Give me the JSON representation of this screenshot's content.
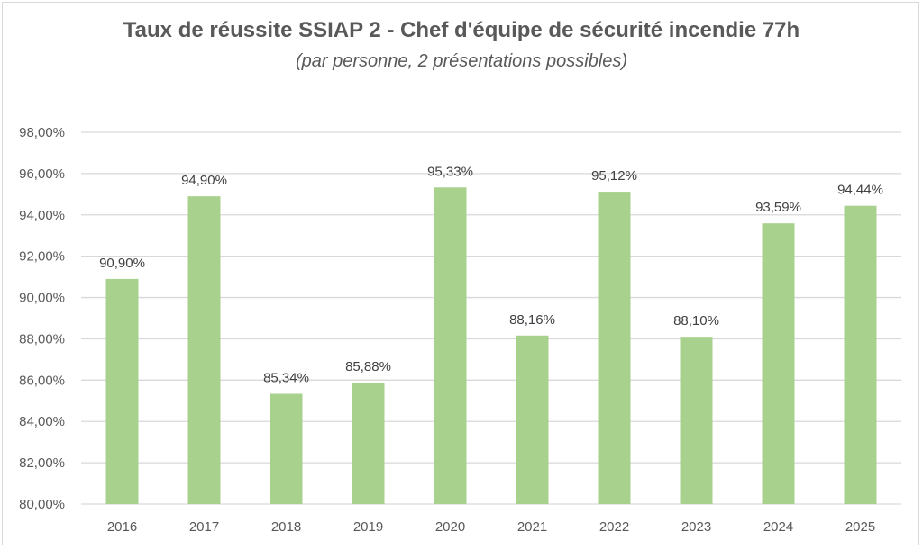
{
  "chart_data": {
    "type": "bar",
    "title": "Taux de réussite SSIAP 2 - Chef d'équipe de sécurité incendie 77h",
    "subtitle": "(par personne, 2 présentations possibles)",
    "xlabel": "",
    "ylabel": "",
    "categories": [
      "2016",
      "2017",
      "2018",
      "2019",
      "2020",
      "2021",
      "2022",
      "2023",
      "2024",
      "2025"
    ],
    "values": [
      90.9,
      94.9,
      85.34,
      85.88,
      95.33,
      88.16,
      95.12,
      88.1,
      93.59,
      94.44
    ],
    "data_labels": [
      "90,90%",
      "94,90%",
      "85,34%",
      "85,88%",
      "95,33%",
      "88,16%",
      "95,12%",
      "88,10%",
      "93,59%",
      "94,44%"
    ],
    "ylim": [
      80,
      98
    ],
    "yticks": [
      80,
      82,
      84,
      86,
      88,
      90,
      92,
      94,
      96,
      98
    ],
    "ytick_labels": [
      "80,00%",
      "82,00%",
      "84,00%",
      "86,00%",
      "88,00%",
      "90,00%",
      "92,00%",
      "94,00%",
      "96,00%",
      "98,00%"
    ],
    "grid": true,
    "legend": "none",
    "colors": {
      "bar": "#a9d18e",
      "grid": "#d9d9d9",
      "text": "#595959"
    }
  }
}
